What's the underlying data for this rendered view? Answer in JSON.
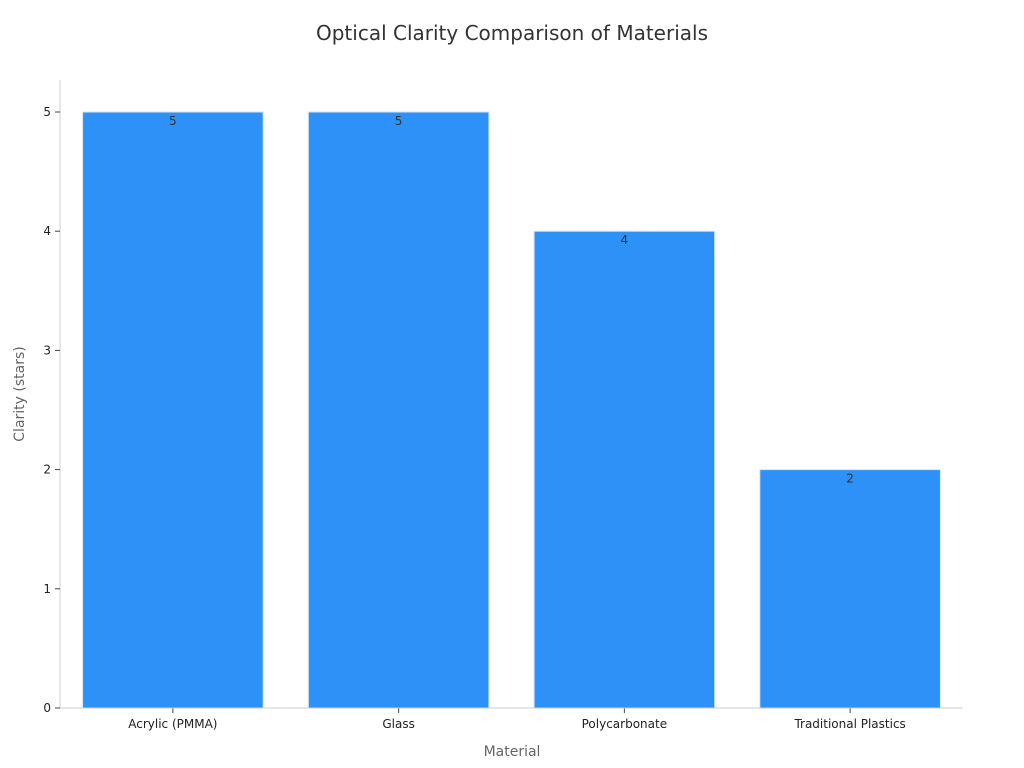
{
  "chart_data": {
    "type": "bar",
    "title": "Optical Clarity Comparison of Materials",
    "xlabel": "Material",
    "ylabel": "Clarity (stars)",
    "categories": [
      "Acrylic (PMMA)",
      "Glass",
      "Polycarbonate",
      "Traditional Plastics"
    ],
    "values": [
      5,
      5,
      4,
      2
    ],
    "data_labels": [
      "5",
      "5",
      "4",
      "2"
    ],
    "yticks": [
      "0",
      "1",
      "2",
      "3",
      "4",
      "5"
    ],
    "ylim": [
      0,
      5.27
    ],
    "grid": false,
    "legend": "none",
    "colors": {
      "bar": "#2e91f8",
      "bar_edge": "#d7e6f5"
    }
  }
}
